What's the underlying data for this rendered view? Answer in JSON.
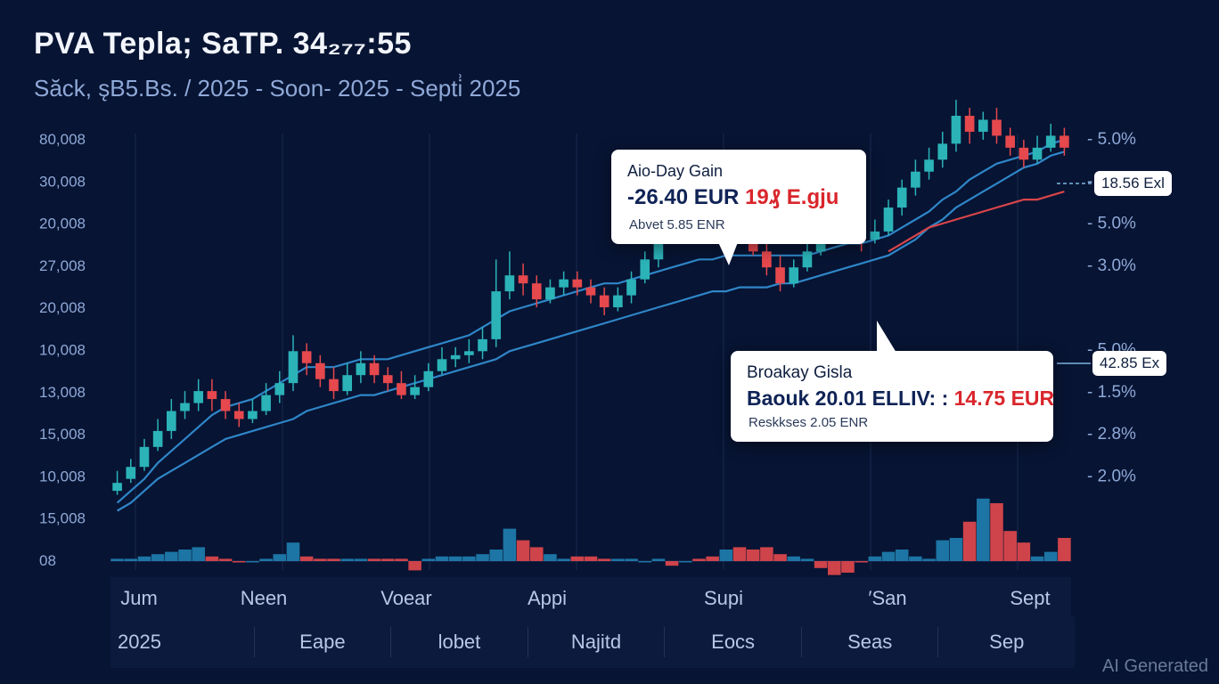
{
  "header": {
    "title": "PVA Tepla; SaTP. 34₂₇₇:55",
    "subtitle": "Săck, s̨B5.Bs. / 2025 - Soon- 2025 - Septi͗ 2025"
  },
  "callouts": {
    "gain": {
      "title": "Aio-Day Gain",
      "value": "-26.40 EUR",
      "value_extra": "19₰ E.gju",
      "note": "Abvet 5.85 ENR"
    },
    "breakaway": {
      "title": "Broakay Gisla",
      "value_prefix": "Baouk 20.01 ELLIV: :",
      "value": "14.75 EUR",
      "note": "Reskkses 2.05 ENR"
    }
  },
  "side_tags": {
    "upper": "18.56 Exl",
    "lower": "42.85 Ex"
  },
  "nav": {
    "year": "2025",
    "items": [
      "Eape",
      "lobet",
      "Najitd",
      "Eocs",
      "Seas",
      "Sep"
    ]
  },
  "watermark": "AI Generated",
  "colors": {
    "background": "#071433",
    "up": "#2bb3b8",
    "down": "#e5484d",
    "ma_blue": "#2f86c8",
    "ma_red": "#d9454a",
    "grid": "#1b2a4f"
  },
  "chart_data": {
    "type": "candlestick",
    "left_axis_labels": [
      "80,008",
      "30,008",
      "20,008",
      "27,008",
      "20,008",
      "10,008",
      "13,008",
      "15,008",
      "10,008",
      "15,008",
      "08"
    ],
    "right_axis_labels": [
      "5.0%",
      "2.0%",
      "5.0%",
      "3.0%",
      "",
      "5.0%",
      "1.5%",
      "2.8%",
      "2.0%"
    ],
    "x_tick_labels": [
      "Jum",
      "Neen",
      "Voear",
      "Appi",
      "Supi",
      "′San",
      "Sept"
    ],
    "y_range": [
      0,
      100
    ],
    "candles": [
      {
        "o": 6,
        "c": 8,
        "h": 11,
        "l": 5,
        "d": 0
      },
      {
        "o": 9,
        "c": 12,
        "h": 14,
        "l": 8,
        "d": 0
      },
      {
        "o": 12,
        "c": 17,
        "h": 19,
        "l": 11,
        "d": 0
      },
      {
        "o": 17,
        "c": 21,
        "h": 24,
        "l": 16,
        "d": 0
      },
      {
        "o": 21,
        "c": 26,
        "h": 29,
        "l": 19,
        "d": 0
      },
      {
        "o": 26,
        "c": 28,
        "h": 31,
        "l": 24,
        "d": 0
      },
      {
        "o": 28,
        "c": 31,
        "h": 34,
        "l": 26,
        "d": 0
      },
      {
        "o": 31,
        "c": 29,
        "h": 34,
        "l": 26,
        "d": 1
      },
      {
        "o": 29,
        "c": 26,
        "h": 31,
        "l": 24,
        "d": 1
      },
      {
        "o": 26,
        "c": 24,
        "h": 28,
        "l": 22,
        "d": 1
      },
      {
        "o": 24,
        "c": 26,
        "h": 29,
        "l": 23,
        "d": 0
      },
      {
        "o": 26,
        "c": 30,
        "h": 33,
        "l": 25,
        "d": 0
      },
      {
        "o": 30,
        "c": 33,
        "h": 36,
        "l": 28,
        "d": 0
      },
      {
        "o": 33,
        "c": 41,
        "h": 45,
        "l": 31,
        "d": 0
      },
      {
        "o": 41,
        "c": 38,
        "h": 43,
        "l": 35,
        "d": 1
      },
      {
        "o": 38,
        "c": 34,
        "h": 40,
        "l": 32,
        "d": 1
      },
      {
        "o": 34,
        "c": 31,
        "h": 37,
        "l": 29,
        "d": 1
      },
      {
        "o": 31,
        "c": 35,
        "h": 38,
        "l": 30,
        "d": 0
      },
      {
        "o": 35,
        "c": 38,
        "h": 41,
        "l": 33,
        "d": 0
      },
      {
        "o": 38,
        "c": 35,
        "h": 40,
        "l": 33,
        "d": 1
      },
      {
        "o": 35,
        "c": 33,
        "h": 37,
        "l": 31,
        "d": 1
      },
      {
        "o": 33,
        "c": 30,
        "h": 36,
        "l": 29,
        "d": 1
      },
      {
        "o": 30,
        "c": 32,
        "h": 35,
        "l": 29,
        "d": 0
      },
      {
        "o": 32,
        "c": 36,
        "h": 38,
        "l": 31,
        "d": 0
      },
      {
        "o": 36,
        "c": 39,
        "h": 42,
        "l": 35,
        "d": 0
      },
      {
        "o": 39,
        "c": 40,
        "h": 42,
        "l": 37,
        "d": 0
      },
      {
        "o": 40,
        "c": 41,
        "h": 44,
        "l": 38,
        "d": 0
      },
      {
        "o": 41,
        "c": 44,
        "h": 47,
        "l": 39,
        "d": 0
      },
      {
        "o": 44,
        "c": 56,
        "h": 64,
        "l": 42,
        "d": 0
      },
      {
        "o": 56,
        "c": 60,
        "h": 66,
        "l": 54,
        "d": 0
      },
      {
        "o": 60,
        "c": 58,
        "h": 63,
        "l": 55,
        "d": 1
      },
      {
        "o": 58,
        "c": 54,
        "h": 60,
        "l": 52,
        "d": 1
      },
      {
        "o": 54,
        "c": 57,
        "h": 59,
        "l": 53,
        "d": 0
      },
      {
        "o": 57,
        "c": 59,
        "h": 61,
        "l": 55,
        "d": 0
      },
      {
        "o": 59,
        "c": 57,
        "h": 61,
        "l": 55,
        "d": 1
      },
      {
        "o": 57,
        "c": 55,
        "h": 59,
        "l": 53,
        "d": 1
      },
      {
        "o": 55,
        "c": 52,
        "h": 57,
        "l": 50,
        "d": 1
      },
      {
        "o": 52,
        "c": 55,
        "h": 57,
        "l": 51,
        "d": 0
      },
      {
        "o": 55,
        "c": 59,
        "h": 61,
        "l": 53,
        "d": 0
      },
      {
        "o": 59,
        "c": 64,
        "h": 66,
        "l": 58,
        "d": 0
      },
      {
        "o": 64,
        "c": 70,
        "h": 72,
        "l": 62,
        "d": 0
      },
      {
        "o": 70,
        "c": 73,
        "h": 75,
        "l": 68,
        "d": 0
      },
      {
        "o": 73,
        "c": 75,
        "h": 77,
        "l": 71,
        "d": 0
      },
      {
        "o": 75,
        "c": 72,
        "h": 77,
        "l": 70,
        "d": 1
      },
      {
        "o": 72,
        "c": 71,
        "h": 75,
        "l": 69,
        "d": 1
      },
      {
        "o": 71,
        "c": 74,
        "h": 76,
        "l": 70,
        "d": 0
      },
      {
        "o": 74,
        "c": 70,
        "h": 75,
        "l": 68,
        "d": 1
      },
      {
        "o": 70,
        "c": 66,
        "h": 72,
        "l": 65,
        "d": 1
      },
      {
        "o": 66,
        "c": 62,
        "h": 69,
        "l": 60,
        "d": 1
      },
      {
        "o": 62,
        "c": 58,
        "h": 65,
        "l": 56,
        "d": 1
      },
      {
        "o": 58,
        "c": 62,
        "h": 64,
        "l": 57,
        "d": 0
      },
      {
        "o": 62,
        "c": 66,
        "h": 68,
        "l": 61,
        "d": 0
      },
      {
        "o": 66,
        "c": 69,
        "h": 72,
        "l": 65,
        "d": 0
      },
      {
        "o": 69,
        "c": 73,
        "h": 76,
        "l": 68,
        "d": 0
      },
      {
        "o": 73,
        "c": 71,
        "h": 77,
        "l": 69,
        "d": 1
      },
      {
        "o": 71,
        "c": 69,
        "h": 74,
        "l": 66,
        "d": 1
      },
      {
        "o": 69,
        "c": 71,
        "h": 74,
        "l": 68,
        "d": 0
      },
      {
        "o": 71,
        "c": 77,
        "h": 79,
        "l": 70,
        "d": 0
      },
      {
        "o": 77,
        "c": 82,
        "h": 84,
        "l": 75,
        "d": 0
      },
      {
        "o": 82,
        "c": 86,
        "h": 89,
        "l": 80,
        "d": 0
      },
      {
        "o": 86,
        "c": 89,
        "h": 92,
        "l": 84,
        "d": 0
      },
      {
        "o": 89,
        "c": 93,
        "h": 96,
        "l": 87,
        "d": 0
      },
      {
        "o": 93,
        "c": 100,
        "h": 104,
        "l": 91,
        "d": 0
      },
      {
        "o": 100,
        "c": 96,
        "h": 102,
        "l": 93,
        "d": 1
      },
      {
        "o": 96,
        "c": 99,
        "h": 101,
        "l": 94,
        "d": 0
      },
      {
        "o": 99,
        "c": 95,
        "h": 102,
        "l": 93,
        "d": 1
      },
      {
        "o": 95,
        "c": 92,
        "h": 97,
        "l": 90,
        "d": 1
      },
      {
        "o": 92,
        "c": 89,
        "h": 94,
        "l": 87,
        "d": 1
      },
      {
        "o": 89,
        "c": 92,
        "h": 95,
        "l": 88,
        "d": 0
      },
      {
        "o": 92,
        "c": 95,
        "h": 98,
        "l": 91,
        "d": 0
      },
      {
        "o": 95,
        "c": 92,
        "h": 97,
        "l": 90,
        "d": 1
      }
    ],
    "ma_blue_1": [
      3,
      6,
      9,
      13,
      16,
      19,
      22,
      25,
      27,
      28,
      29,
      31,
      33,
      35,
      37,
      37,
      37,
      38,
      39,
      39,
      39,
      40,
      41,
      42,
      43,
      44,
      45,
      47,
      49,
      51,
      52,
      53,
      54,
      55,
      56,
      57,
      58,
      58,
      59,
      60,
      61,
      62,
      63,
      64,
      64,
      65,
      65,
      65,
      65,
      65,
      65,
      65,
      66,
      67,
      68,
      68,
      69,
      70,
      72,
      74,
      76,
      79,
      81,
      84,
      86,
      88,
      89,
      90,
      91,
      93,
      94
    ],
    "ma_blue_2": [
      1,
      3,
      6,
      9,
      11,
      13,
      15,
      17,
      19,
      20,
      21,
      22,
      23,
      24,
      26,
      27,
      28,
      29,
      30,
      30,
      31,
      32,
      33,
      34,
      35,
      36,
      37,
      38,
      39,
      41,
      42,
      43,
      44,
      45,
      46,
      47,
      48,
      49,
      50,
      51,
      52,
      53,
      54,
      55,
      56,
      56,
      57,
      57,
      57,
      58,
      58,
      59,
      60,
      61,
      62,
      63,
      64,
      65,
      67,
      69,
      72,
      74,
      77,
      79,
      81,
      83,
      85,
      87,
      88,
      90,
      91
    ],
    "ma_red": [
      null,
      null,
      null,
      null,
      null,
      null,
      null,
      null,
      null,
      null,
      null,
      null,
      null,
      null,
      null,
      null,
      null,
      null,
      null,
      null,
      null,
      null,
      null,
      null,
      null,
      null,
      null,
      null,
      null,
      null,
      null,
      null,
      null,
      null,
      null,
      null,
      null,
      null,
      null,
      null,
      null,
      null,
      null,
      null,
      null,
      null,
      null,
      null,
      null,
      null,
      null,
      null,
      null,
      null,
      null,
      null,
      null,
      66,
      68,
      70,
      72,
      73,
      74,
      75,
      76,
      77,
      78,
      79,
      79,
      80,
      81
    ],
    "volume": [
      1,
      1,
      2,
      3,
      4,
      5,
      6,
      2,
      1,
      0,
      0,
      1,
      3,
      8,
      2,
      1,
      1,
      1,
      1,
      1,
      1,
      1,
      -4,
      1,
      2,
      2,
      2,
      3,
      5,
      14,
      9,
      6,
      3,
      1,
      2,
      2,
      1,
      1,
      1,
      0,
      1,
      -2,
      0,
      1,
      2,
      5,
      6,
      5,
      6,
      3,
      2,
      1,
      -3,
      -6,
      -5,
      0,
      2,
      4,
      5,
      2,
      1,
      9,
      10,
      17,
      27,
      25,
      13,
      8,
      2,
      4,
      10
    ]
  }
}
